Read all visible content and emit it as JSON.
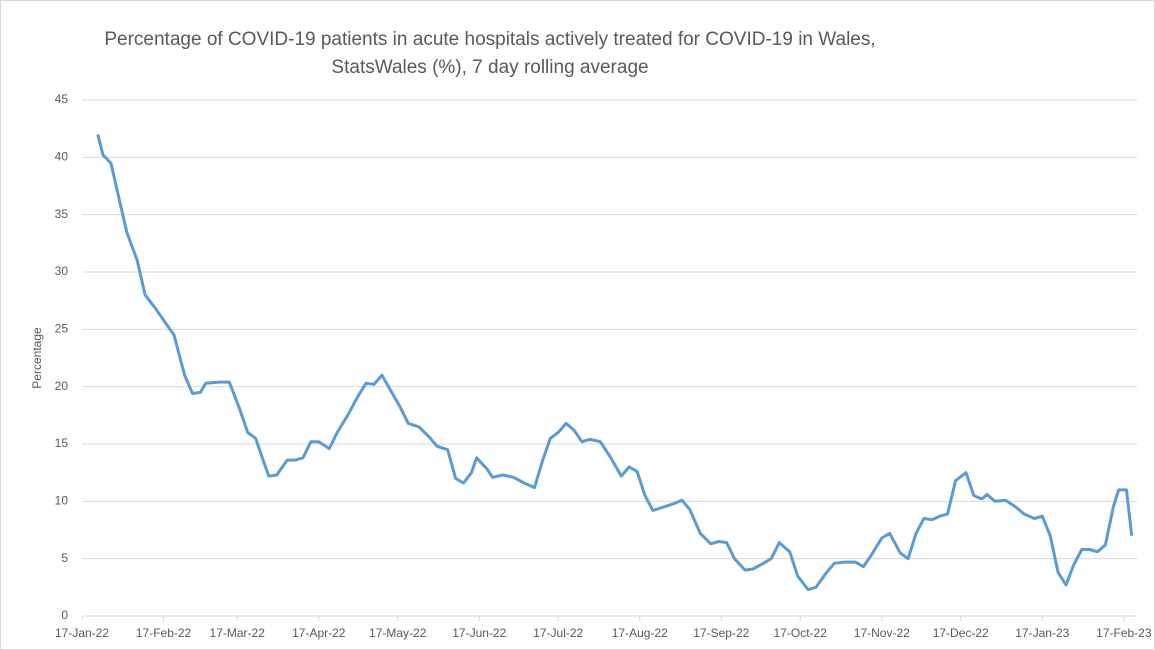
{
  "chart_data": {
    "type": "line",
    "title": "Percentage of COVID-19 patients in acute hospitals actively treated for COVID-19 in Wales,",
    "subtitle": "StatsWales (%), 7 day rolling average",
    "y_label": "Percentage",
    "x": [
      "2022-01-23",
      "2022-01-25",
      "2022-01-28",
      "2022-01-31",
      "2022-02-03",
      "2022-02-07",
      "2022-02-10",
      "2022-02-14",
      "2022-02-17",
      "2022-02-21",
      "2022-02-25",
      "2022-02-28",
      "2022-03-03",
      "2022-03-05",
      "2022-03-10",
      "2022-03-14",
      "2022-03-18",
      "2022-03-21",
      "2022-03-24",
      "2022-03-27",
      "2022-03-29",
      "2022-04-01",
      "2022-04-05",
      "2022-04-08",
      "2022-04-11",
      "2022-04-14",
      "2022-04-17",
      "2022-04-21",
      "2022-04-24",
      "2022-04-28",
      "2022-05-02",
      "2022-05-05",
      "2022-05-08",
      "2022-05-11",
      "2022-05-14",
      "2022-05-18",
      "2022-05-21",
      "2022-05-25",
      "2022-05-29",
      "2022-06-01",
      "2022-06-05",
      "2022-06-08",
      "2022-06-11",
      "2022-06-14",
      "2022-06-16",
      "2022-06-20",
      "2022-06-22",
      "2022-06-26",
      "2022-06-30",
      "2022-07-04",
      "2022-07-08",
      "2022-07-11",
      "2022-07-14",
      "2022-07-17",
      "2022-07-20",
      "2022-07-23",
      "2022-07-26",
      "2022-07-29",
      "2022-08-02",
      "2022-08-06",
      "2022-08-10",
      "2022-08-13",
      "2022-08-16",
      "2022-08-19",
      "2022-08-22",
      "2022-08-26",
      "2022-08-30",
      "2022-09-02",
      "2022-09-05",
      "2022-09-09",
      "2022-09-13",
      "2022-09-16",
      "2022-09-19",
      "2022-09-22",
      "2022-09-26",
      "2022-09-29",
      "2022-10-03",
      "2022-10-06",
      "2022-10-09",
      "2022-10-13",
      "2022-10-16",
      "2022-10-20",
      "2022-10-23",
      "2022-10-27",
      "2022-10-30",
      "2022-11-03",
      "2022-11-07",
      "2022-11-10",
      "2022-11-13",
      "2022-11-17",
      "2022-11-20",
      "2022-11-24",
      "2022-11-27",
      "2022-11-30",
      "2022-12-03",
      "2022-12-06",
      "2022-12-09",
      "2022-12-12",
      "2022-12-15",
      "2022-12-19",
      "2022-12-22",
      "2022-12-25",
      "2022-12-27",
      "2022-12-30",
      "2023-01-03",
      "2023-01-07",
      "2023-01-10",
      "2023-01-14",
      "2023-01-17",
      "2023-01-20",
      "2023-01-23",
      "2023-01-26",
      "2023-01-29",
      "2023-02-01",
      "2023-02-04",
      "2023-02-07",
      "2023-02-10",
      "2023-02-13",
      "2023-02-15",
      "2023-02-18",
      "2023-02-20"
    ],
    "series": [
      {
        "name": "Percentage",
        "color": "#5b9bd5",
        "values": [
          42,
          40.2,
          39.5,
          36.5,
          33.5,
          31,
          28,
          26.8,
          25.8,
          24.5,
          21,
          19.4,
          19.5,
          20.3,
          20.4,
          20.4,
          18,
          16,
          15.5,
          13.5,
          12.2,
          12.3,
          13.6,
          13.6,
          13.8,
          15.2,
          15.2,
          14.6,
          16,
          17.5,
          19.2,
          20.3,
          20.2,
          21,
          19.8,
          18.2,
          16.8,
          16.5,
          15.6,
          14.8,
          14.5,
          12,
          11.6,
          12.5,
          13.8,
          12.8,
          12.1,
          12.3,
          12.1,
          11.6,
          11.2,
          13.5,
          15.5,
          16,
          16.8,
          16.2,
          15.2,
          15.4,
          15.2,
          13.8,
          12.2,
          13,
          12.6,
          10.5,
          9.2,
          9.5,
          9.8,
          10.1,
          9.3,
          7.2,
          6.3,
          6.5,
          6.4,
          5,
          4,
          4.1,
          4.6,
          5,
          6.4,
          5.6,
          3.5,
          2.3,
          2.5,
          3.8,
          4.6,
          4.7,
          4.7,
          4.3,
          5.3,
          6.8,
          7.2,
          5.5,
          5,
          7.2,
          8.5,
          8.4,
          8.7,
          8.9,
          11.8,
          12.5,
          10.5,
          10.2,
          10.6,
          10,
          10.1,
          9.5,
          8.9,
          8.5,
          8.7,
          7,
          3.8,
          2.7,
          4.5,
          5.8,
          5.8,
          5.6,
          6.2,
          9.5,
          11,
          11,
          7
        ]
      }
    ],
    "xlim": [
      "2022-01-17",
      "2023-02-22"
    ],
    "xticks": [
      {
        "value": "2022-01-17",
        "label": "17-Jan-22"
      },
      {
        "value": "2022-02-17",
        "label": "17-Feb-22"
      },
      {
        "value": "2022-03-17",
        "label": "17-Mar-22"
      },
      {
        "value": "2022-04-17",
        "label": "17-Apr-22"
      },
      {
        "value": "2022-05-17",
        "label": "17-May-22"
      },
      {
        "value": "2022-06-17",
        "label": "17-Jun-22"
      },
      {
        "value": "2022-07-17",
        "label": "17-Jul-22"
      },
      {
        "value": "2022-08-17",
        "label": "17-Aug-22"
      },
      {
        "value": "2022-09-17",
        "label": "17-Sep-22"
      },
      {
        "value": "2022-10-17",
        "label": "17-Oct-22"
      },
      {
        "value": "2022-11-17",
        "label": "17-Nov-22"
      },
      {
        "value": "2022-12-17",
        "label": "17-Dec-22"
      },
      {
        "value": "2023-01-17",
        "label": "17-Jan-23"
      },
      {
        "value": "2023-02-17",
        "label": "17-Feb-23"
      }
    ],
    "ylim": [
      0,
      45
    ],
    "yticks": [
      0,
      5,
      10,
      15,
      20,
      25,
      30,
      35,
      40,
      45
    ],
    "grid": true
  }
}
